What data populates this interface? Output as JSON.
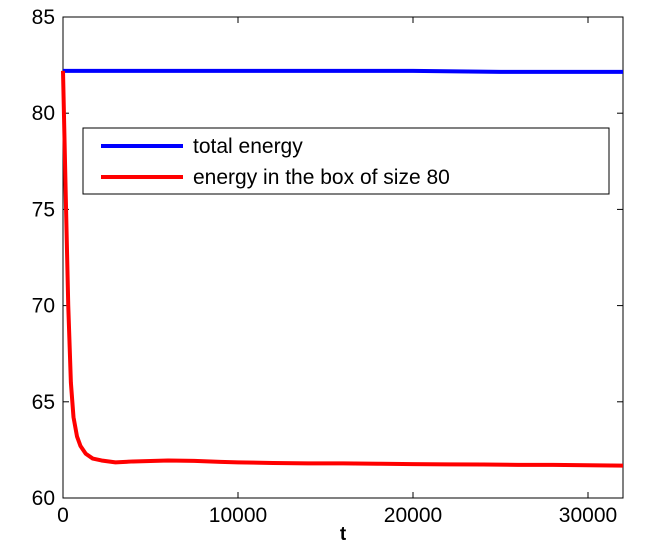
{
  "chart_data": {
    "type": "line",
    "xlabel": "t",
    "ylabel": "",
    "title": "",
    "xlim": [
      0,
      32000
    ],
    "ylim": [
      60,
      85
    ],
    "xticks": [
      0,
      10000,
      20000,
      30000
    ],
    "yticks": [
      60,
      65,
      70,
      75,
      80,
      85
    ],
    "grid": false,
    "legend_position": "upper-middle",
    "series": [
      {
        "name": "total energy",
        "color": "#0000ff",
        "x": [
          0,
          5000,
          10000,
          15000,
          20000,
          25000,
          30000,
          32000
        ],
        "y": [
          82.2,
          82.2,
          82.2,
          82.2,
          82.2,
          82.15,
          82.15,
          82.15
        ]
      },
      {
        "name": "energy in the box of size 80",
        "color": "#ff0000",
        "x": [
          0,
          150,
          300,
          450,
          600,
          800,
          1000,
          1300,
          1700,
          2200,
          3000,
          4000,
          5000,
          6000,
          7500,
          9000,
          10000,
          12000,
          14000,
          16000,
          18000,
          20000,
          22000,
          24000,
          26000,
          28000,
          30000,
          32000
        ],
        "y": [
          82.2,
          76,
          70,
          66,
          64.2,
          63.2,
          62.7,
          62.3,
          62.05,
          61.95,
          61.85,
          61.9,
          61.92,
          61.95,
          61.93,
          61.88,
          61.85,
          61.82,
          61.8,
          61.8,
          61.78,
          61.76,
          61.75,
          61.74,
          61.72,
          61.72,
          61.7,
          61.68
        ]
      }
    ]
  }
}
